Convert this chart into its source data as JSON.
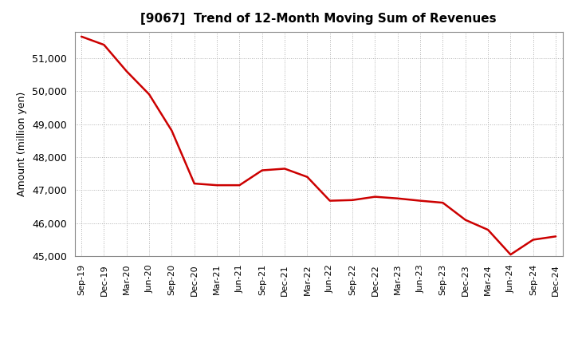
{
  "title": "[9067]  Trend of 12-Month Moving Sum of Revenues",
  "ylabel": "Amount (million yen)",
  "line_color": "#cc0000",
  "background_color": "#ffffff",
  "plot_bg_color": "#ffffff",
  "grid_color": "#b0b0b0",
  "ylim": [
    45000,
    51800
  ],
  "yticks": [
    45000,
    46000,
    47000,
    48000,
    49000,
    50000,
    51000
  ],
  "x_labels": [
    "Sep-19",
    "Dec-19",
    "Mar-20",
    "Jun-20",
    "Sep-20",
    "Dec-20",
    "Mar-21",
    "Jun-21",
    "Sep-21",
    "Dec-21",
    "Mar-22",
    "Jun-22",
    "Sep-22",
    "Dec-22",
    "Mar-23",
    "Jun-23",
    "Sep-23",
    "Dec-23",
    "Mar-24",
    "Jun-24",
    "Sep-24",
    "Dec-24"
  ],
  "values": [
    51650,
    51400,
    50600,
    49900,
    48800,
    47200,
    47150,
    47150,
    47600,
    47650,
    47400,
    46680,
    46700,
    46800,
    46750,
    46680,
    46620,
    46100,
    45800,
    45050,
    45500,
    45600
  ]
}
